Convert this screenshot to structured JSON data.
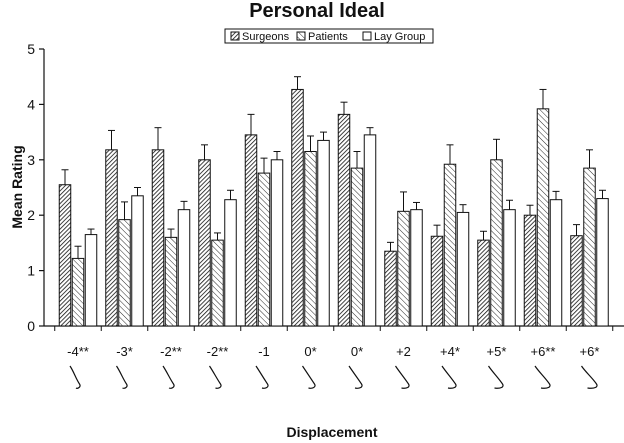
{
  "chart_data": {
    "type": "bar",
    "title": "Personal Ideal",
    "xlabel": "Displacement",
    "ylabel": "Mean Rating",
    "ylim": [
      0,
      5
    ],
    "yticks": [
      0,
      1,
      2,
      3,
      4,
      5
    ],
    "grid": false,
    "legend_position": "top-center",
    "categories": [
      "-4**",
      "-3*",
      "-2**",
      "-2**",
      "-1",
      "0*",
      "0*",
      "+2",
      "+4*",
      "+5*",
      "+6**",
      "+6*"
    ],
    "series": [
      {
        "name": "Surgeons",
        "pattern": "dense-hatch",
        "values": [
          2.55,
          3.18,
          3.18,
          3.0,
          3.45,
          4.27,
          3.82,
          1.35,
          1.62,
          1.55,
          2.0,
          1.63
        ],
        "errors": [
          0.27,
          0.35,
          0.4,
          0.27,
          0.37,
          0.23,
          0.22,
          0.16,
          0.2,
          0.16,
          0.18,
          0.2
        ]
      },
      {
        "name": "Patients",
        "pattern": "light-hatch",
        "values": [
          1.22,
          1.92,
          1.6,
          1.55,
          2.76,
          3.15,
          2.85,
          2.07,
          2.92,
          3.0,
          3.92,
          2.85
        ],
        "errors": [
          0.22,
          0.32,
          0.15,
          0.13,
          0.27,
          0.28,
          0.3,
          0.35,
          0.35,
          0.37,
          0.35,
          0.33
        ]
      },
      {
        "name": "Lay Group",
        "pattern": "solid-white",
        "values": [
          1.65,
          2.35,
          2.1,
          2.28,
          3.0,
          3.35,
          3.45,
          2.1,
          2.05,
          2.1,
          2.28,
          2.3
        ],
        "errors": [
          0.1,
          0.15,
          0.15,
          0.17,
          0.15,
          0.15,
          0.13,
          0.13,
          0.14,
          0.17,
          0.15,
          0.15
        ]
      }
    ]
  },
  "colors": {
    "ink": "#111111",
    "bar_fill": "#ffffff",
    "background": "#ffffff"
  }
}
